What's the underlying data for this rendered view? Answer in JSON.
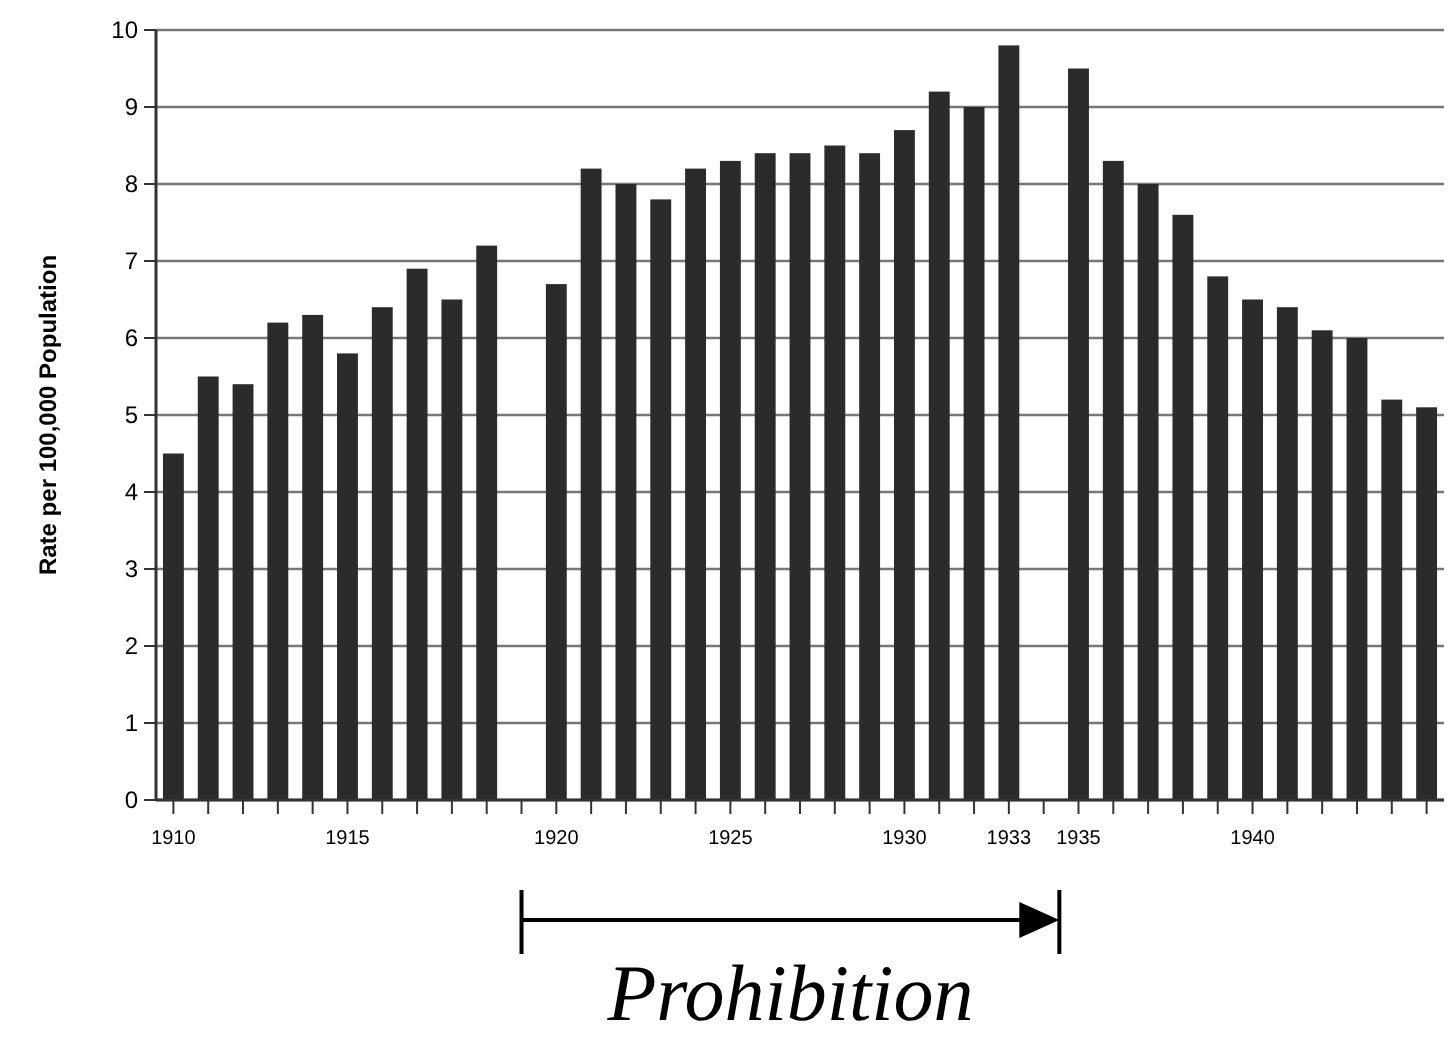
{
  "chart_data": {
    "type": "bar",
    "ylabel": "Rate per 100,000 Population",
    "categories": [
      "1910",
      null,
      null,
      null,
      null,
      "1915",
      null,
      null,
      null,
      null,
      null,
      "1920",
      null,
      null,
      null,
      null,
      "1925",
      null,
      null,
      null,
      null,
      "1930",
      null,
      null,
      "1933",
      null,
      "1935",
      null,
      null,
      null,
      null,
      "1940",
      null,
      null,
      null,
      null,
      null
    ],
    "values": [
      4.5,
      5.5,
      5.4,
      6.2,
      6.3,
      5.8,
      6.4,
      6.9,
      6.5,
      7.2,
      null,
      6.7,
      8.2,
      8.0,
      7.8,
      8.2,
      8.3,
      8.4,
      8.4,
      8.5,
      8.4,
      8.7,
      9.2,
      9.0,
      9.8,
      null,
      9.5,
      8.3,
      8.0,
      7.6,
      6.8,
      6.5,
      6.4,
      6.1,
      6.0,
      5.2,
      5.1
    ],
    "color": "#2b2b2b",
    "ylim": [
      0,
      10
    ],
    "yticks": [
      0,
      1,
      2,
      3,
      4,
      5,
      6,
      7,
      8,
      9,
      10
    ],
    "grid": "y",
    "annotations": [
      "Prohibition"
    ]
  }
}
